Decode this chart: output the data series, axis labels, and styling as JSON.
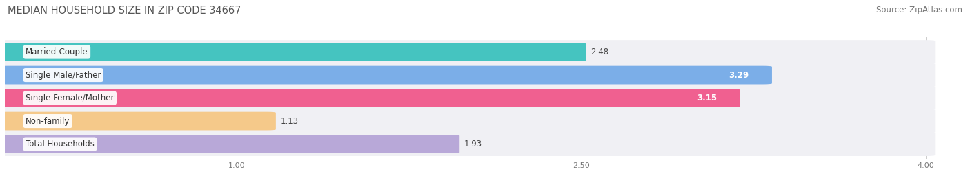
{
  "title": "MEDIAN HOUSEHOLD SIZE IN ZIP CODE 34667",
  "source": "Source: ZipAtlas.com",
  "categories": [
    "Married-Couple",
    "Single Male/Father",
    "Single Female/Mother",
    "Non-family",
    "Total Households"
  ],
  "values": [
    2.48,
    3.29,
    3.15,
    1.13,
    1.93
  ],
  "bar_colors": [
    "#45c4c0",
    "#7baee8",
    "#f06090",
    "#f5c98a",
    "#b8a8d8"
  ],
  "bar_bg_color": "#e5e5e8",
  "xlim": [
    0.0,
    4.15
  ],
  "xmin": 0.0,
  "xmax": 4.0,
  "xticks": [
    1.0,
    2.5,
    4.0
  ],
  "title_fontsize": 10.5,
  "source_fontsize": 8.5,
  "label_fontsize": 8.5,
  "value_fontsize": 8.5,
  "background_color": "#ffffff",
  "bar_height": 0.72,
  "row_bg_color": "#f0f0f4",
  "value_inside_threshold": 2.8
}
